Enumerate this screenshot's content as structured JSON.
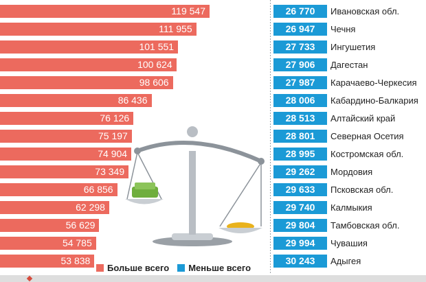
{
  "chart_data": {
    "type": "bar",
    "title": "",
    "series": [
      {
        "name": "Больше всего",
        "color": "#ec6a5e",
        "values": [
          119547,
          111955,
          101551,
          100624,
          98606,
          86436,
          76126,
          75197,
          74904,
          73349,
          66856,
          62298,
          56629,
          54785,
          53838
        ],
        "labels": [
          "119 547",
          "111 955",
          "101 551",
          "100 624",
          "98 606",
          "86 436",
          "76 126",
          "75 197",
          "74 904",
          "73 349",
          "66 856",
          "62 298",
          "56 629",
          "54 785",
          "53 838"
        ]
      },
      {
        "name": "Меньше всего",
        "color": "#1b9ad6",
        "values": [
          26770,
          26947,
          27733,
          27906,
          27987,
          28006,
          28513,
          28801,
          28995,
          29262,
          29633,
          29740,
          29804,
          29994,
          30243
        ],
        "labels": [
          "26 770",
          "26 947",
          "27 733",
          "27 906",
          "27 987",
          "28 006",
          "28 513",
          "28 801",
          "28 995",
          "29 262",
          "29 633",
          "29 740",
          "29 804",
          "29 994",
          "30 243"
        ],
        "categories": [
          "Ивановская обл.",
          "Чечня",
          "Ингушетия",
          "Дагестан",
          "Карачаево-Черкесия",
          "Кабардино-Балкария",
          "Алтайский край",
          "Северная Осетия",
          "Костромская обл.",
          "Мордовия",
          "Псковская обл.",
          "Калмыкия",
          "Тамбовская обл.",
          "Чувашия",
          "Адыгея"
        ]
      }
    ],
    "legend": {
      "position": "bottom",
      "items": [
        {
          "label": "Больше всего",
          "color": "#ec6a5e"
        },
        {
          "label": "Меньше всего",
          "color": "#1b9ad6"
        }
      ]
    }
  }
}
